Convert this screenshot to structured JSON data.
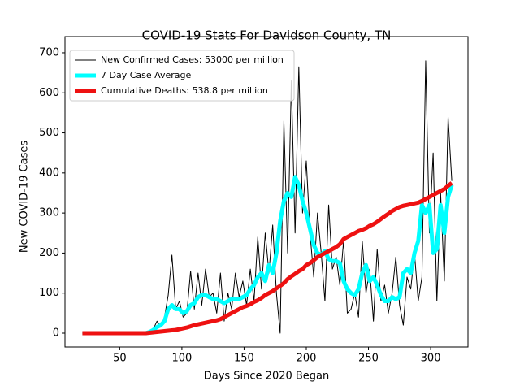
{
  "chart_data": {
    "type": "line",
    "title": "COVID-19 Stats For Davidson County, TN",
    "xlabel": "Days Since 2020 Began",
    "ylabel": "New COVID-19 Cases",
    "x": [
      20,
      23,
      26,
      29,
      32,
      35,
      38,
      41,
      44,
      47,
      50,
      53,
      56,
      59,
      62,
      65,
      68,
      71,
      74,
      77,
      80,
      83,
      86,
      89,
      92,
      95,
      98,
      101,
      104,
      107,
      110,
      113,
      116,
      119,
      122,
      125,
      128,
      131,
      134,
      137,
      140,
      143,
      146,
      149,
      152,
      155,
      158,
      161,
      164,
      167,
      170,
      173,
      176,
      179,
      182,
      185,
      188,
      191,
      194,
      197,
      200,
      203,
      206,
      209,
      212,
      215,
      218,
      221,
      224,
      227,
      230,
      233,
      236,
      239,
      242,
      245,
      248,
      251,
      254,
      257,
      260,
      263,
      266,
      269,
      272,
      275,
      278,
      281,
      284,
      287,
      290,
      293,
      296,
      299,
      302,
      305,
      308,
      311,
      314,
      317
    ],
    "series": [
      {
        "name": "New Confirmed Cases: 53000 per million",
        "color": "#000000",
        "linewidth": 1,
        "values": [
          0,
          0,
          0,
          0,
          0,
          0,
          0,
          0,
          0,
          0,
          0,
          0,
          0,
          0,
          0,
          0,
          0,
          0,
          5,
          10,
          30,
          15,
          40,
          95,
          195,
          60,
          80,
          40,
          50,
          155,
          60,
          150,
          70,
          160,
          90,
          100,
          50,
          150,
          30,
          100,
          60,
          150,
          90,
          130,
          70,
          160,
          80,
          240,
          110,
          250,
          150,
          270,
          100,
          0,
          530,
          200,
          630,
          250,
          665,
          300,
          430,
          250,
          140,
          300,
          200,
          80,
          320,
          160,
          190,
          120,
          230,
          50,
          60,
          100,
          40,
          230,
          100,
          160,
          30,
          210,
          80,
          120,
          50,
          100,
          190,
          70,
          20,
          140,
          110,
          200,
          80,
          140,
          680,
          250,
          450,
          80,
          350,
          130,
          540,
          380
        ]
      },
      {
        "name": "7 Day Case Average",
        "color": "#00ffff",
        "linewidth": 5,
        "values": [
          0,
          0,
          0,
          0,
          0,
          0,
          0,
          0,
          0,
          0,
          0,
          0,
          0,
          0,
          0,
          0,
          0,
          0,
          3,
          8,
          15,
          20,
          30,
          60,
          70,
          60,
          60,
          50,
          55,
          70,
          75,
          90,
          95,
          95,
          90,
          85,
          85,
          80,
          75,
          80,
          85,
          85,
          85,
          90,
          95,
          110,
          120,
          140,
          150,
          130,
          170,
          150,
          200,
          280,
          330,
          350,
          340,
          390,
          370,
          330,
          300,
          260,
          220,
          200,
          195,
          205,
          185,
          180,
          180,
          175,
          130,
          110,
          100,
          95,
          110,
          150,
          170,
          130,
          140,
          120,
          95,
          80,
          80,
          90,
          85,
          90,
          150,
          160,
          150,
          200,
          230,
          320,
          300,
          320,
          200,
          210,
          320,
          250,
          340,
          370
        ]
      },
      {
        "name": "Cumulative Deaths: 538.8 per million",
        "color": "#ee1111",
        "linewidth": 5,
        "values": [
          0,
          0,
          0,
          0,
          0,
          0,
          0,
          0,
          0,
          0,
          0,
          0,
          0,
          0,
          0,
          0,
          0,
          0,
          1,
          2,
          3,
          4,
          5,
          6,
          7,
          8,
          10,
          12,
          14,
          17,
          20,
          22,
          24,
          26,
          28,
          30,
          32,
          35,
          40,
          45,
          50,
          55,
          60,
          65,
          68,
          72,
          78,
          82,
          88,
          95,
          100,
          105,
          112,
          118,
          125,
          135,
          142,
          148,
          155,
          160,
          170,
          175,
          182,
          190,
          195,
          200,
          205,
          210,
          215,
          222,
          235,
          240,
          245,
          250,
          255,
          258,
          262,
          268,
          272,
          278,
          285,
          292,
          298,
          305,
          310,
          315,
          318,
          320,
          322,
          324,
          326,
          330,
          335,
          340,
          345,
          350,
          355,
          360,
          368,
          375
        ]
      }
    ],
    "xlim": [
      6,
      330
    ],
    "ylim": [
      -34.5,
      740.5
    ],
    "xticks": [
      50,
      100,
      150,
      200,
      250,
      300
    ],
    "yticks": [
      0,
      100,
      200,
      300,
      400,
      500,
      600,
      700
    ],
    "legend": "upper left"
  }
}
